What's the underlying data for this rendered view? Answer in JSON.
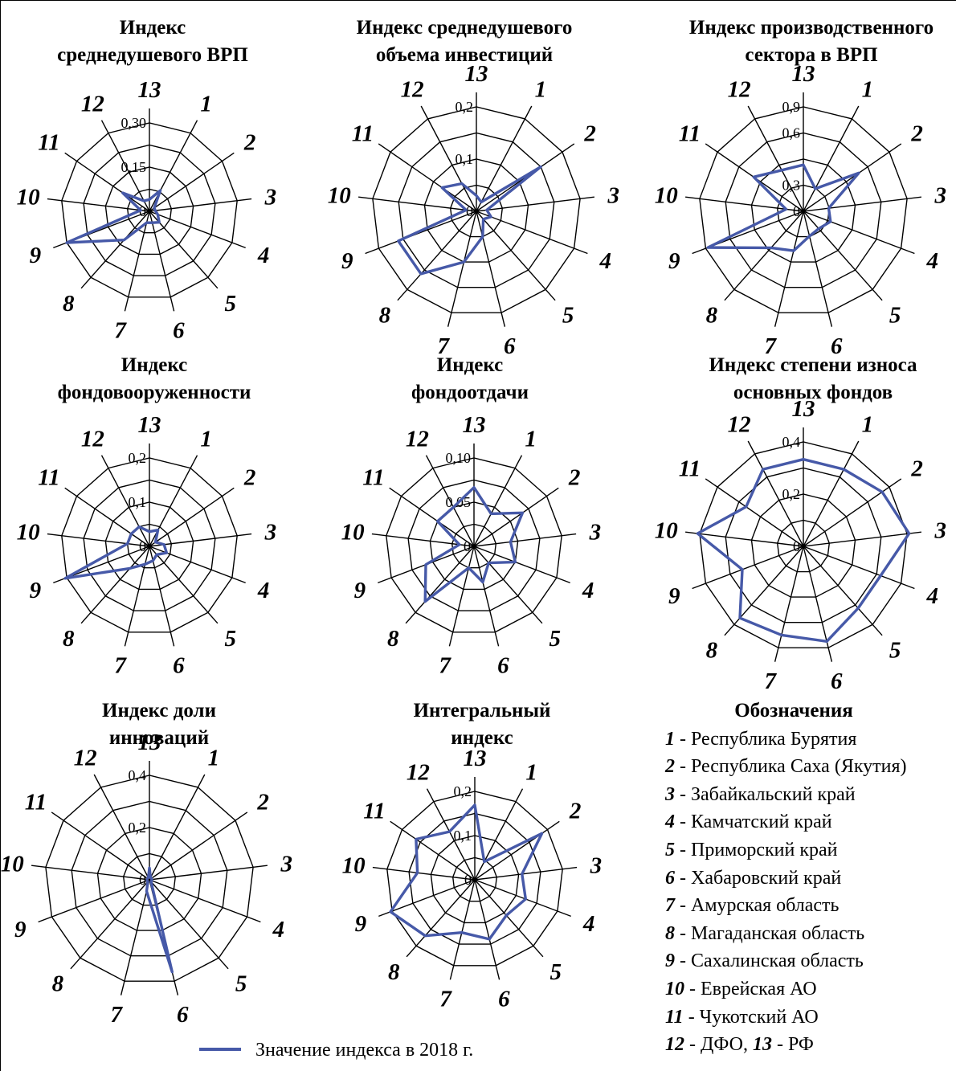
{
  "categories": [
    "1",
    "2",
    "3",
    "4",
    "5",
    "6",
    "7",
    "8",
    "9",
    "10",
    "11",
    "12",
    "13"
  ],
  "colors": {
    "series": "#4659a8",
    "grid": "#000000"
  },
  "series_legend": "Значение индекса в 2018 г.",
  "legend": {
    "title": "Обозначения",
    "items": [
      {
        "num": "1",
        "text": " - Республика Бурятия"
      },
      {
        "num": "2",
        "text": " - Республика Саха (Якутия)"
      },
      {
        "num": "3",
        "text": " - Забайкальский край"
      },
      {
        "num": "4",
        "text": " - Камчатский край"
      },
      {
        "num": "5",
        "text": " - Приморский край"
      },
      {
        "num": "6",
        "text": " - Хабаровский край"
      },
      {
        "num": "7",
        "text": " - Амурская область"
      },
      {
        "num": "8",
        "text": " - Магаданская область"
      },
      {
        "num": "9",
        "text": " - Сахалинская область"
      },
      {
        "num": "10",
        "text": " - Еврейская АО"
      },
      {
        "num": "11",
        "text": " - Чукотский АО"
      },
      {
        "num": "12",
        "text": " - ДФО, ",
        "num2": "13",
        "text2": " - РФ"
      }
    ]
  },
  "chart_data": [
    {
      "type": "radar",
      "title": [
        "Индекс",
        "среднедушевого ВРП"
      ],
      "ticks": [
        "0",
        "0,15",
        "0,30"
      ],
      "rmax": 0.3,
      "rings": 4,
      "values": [
        0.08,
        0.02,
        0.02,
        0.03,
        0.05,
        0.04,
        0.04,
        0.13,
        0.3,
        0.03,
        0.11,
        0.04,
        0.04
      ]
    },
    {
      "type": "radar",
      "title": [
        "Индекс среднедушевого",
        "объема инвестиций"
      ],
      "ticks": [
        "0",
        "0,1",
        "0,2"
      ],
      "rmax": 0.2,
      "rings": 4,
      "values": [
        0.02,
        0.15,
        0.02,
        0.03,
        0.02,
        0.05,
        0.1,
        0.16,
        0.16,
        0.02,
        0.08,
        0.06,
        0.03
      ]
    },
    {
      "type": "radar",
      "title": [
        "Индекс производственного",
        "сектора в ВРП"
      ],
      "ticks": [
        "0",
        "0,3",
        "0,6",
        "0,9"
      ],
      "rmax": 0.9,
      "rings": 4,
      "values": [
        0.22,
        0.58,
        0.22,
        0.25,
        0.2,
        0.22,
        0.35,
        0.42,
        0.88,
        0.15,
        0.52,
        0.4,
        0.4
      ]
    },
    {
      "type": "radar",
      "title": [
        "Индекс",
        "фондовооруженности"
      ],
      "ticks": [
        "0",
        "0,1",
        "0,2"
      ],
      "rmax": 0.24,
      "rings": 4,
      "values": [
        0.05,
        0.02,
        0.04,
        0.05,
        0.03,
        0.04,
        0.05,
        0.08,
        0.25,
        0.06,
        0.06,
        0.06,
        0.04
      ]
    },
    {
      "type": "radar",
      "title": [
        "Индекс",
        "фондоотдачи"
      ],
      "ticks": [
        "0",
        "0,05",
        "0,10"
      ],
      "rmax": 0.12,
      "rings": 4,
      "values": [
        0.05,
        0.08,
        0.05,
        0.06,
        0.03,
        0.05,
        0.03,
        0.1,
        0.07,
        0.02,
        0.06,
        0.06,
        0.08
      ]
    },
    {
      "type": "radar",
      "title": [
        "Индекс степени износа",
        "основных фондов"
      ],
      "ticks": [
        "0",
        "0,2",
        "0,4"
      ],
      "rmax": 0.48,
      "rings": 4,
      "values": [
        0.4,
        0.44,
        0.5,
        0.38,
        0.38,
        0.45,
        0.42,
        0.44,
        0.3,
        0.5,
        0.32,
        0.4,
        0.4
      ]
    },
    {
      "type": "radar",
      "title": [
        "Индекс доли",
        "инноваций"
      ],
      "ticks": [
        "0",
        "0,2",
        "0,4"
      ],
      "rmax": 0.44,
      "rings": 4,
      "values": [
        0.01,
        0.01,
        0.01,
        0.01,
        0.01,
        0.4,
        0.05,
        0.01,
        0.01,
        0.01,
        0.01,
        0.01,
        0.05
      ]
    },
    {
      "type": "radar",
      "title": [
        "Интегральный",
        "индекс"
      ],
      "ticks": [
        "0",
        "0,1",
        "0,2"
      ],
      "rmax": 0.26,
      "rings": 4,
      "values": [
        0.06,
        0.24,
        0.14,
        0.16,
        0.14,
        0.18,
        0.16,
        0.22,
        0.32,
        0.17,
        0.21,
        0.16,
        0.22
      ]
    }
  ]
}
